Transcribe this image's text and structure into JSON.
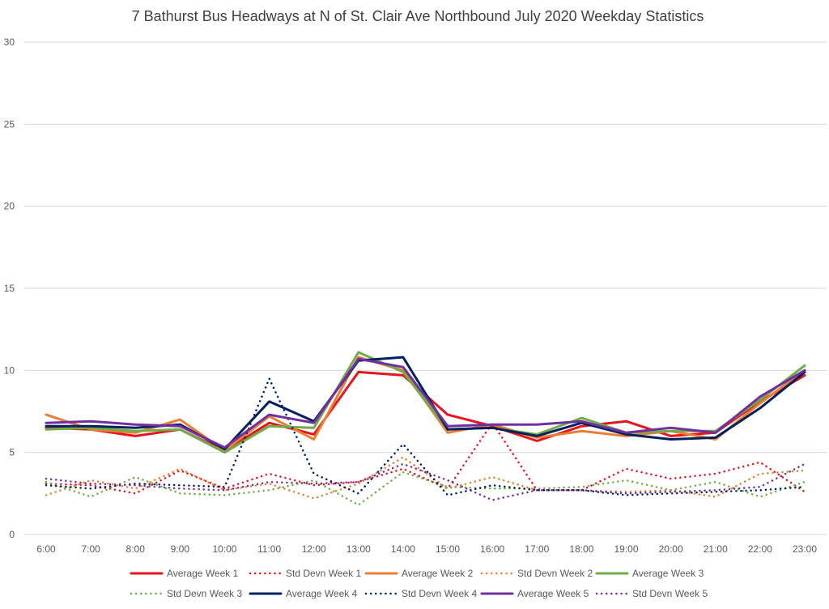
{
  "chart_data": {
    "type": "line",
    "title": "7 Bathurst Bus Headways at N of St. Clair Ave Northbound July 2020 Weekday Statistics",
    "xlabel": "",
    "ylabel": "",
    "categories": [
      "6:00",
      "7:00",
      "8:00",
      "9:00",
      "10:00",
      "11:00",
      "12:00",
      "13:00",
      "14:00",
      "15:00",
      "16:00",
      "17:00",
      "18:00",
      "19:00",
      "20:00",
      "21:00",
      "22:00",
      "23:00"
    ],
    "ylim": [
      0,
      30
    ],
    "yticks": [
      "0",
      "5",
      "10",
      "15",
      "20",
      "25",
      "30"
    ],
    "grid": true,
    "legend_position": "bottom",
    "series": [
      {
        "name": "Average Week 1",
        "color": "#e8141b",
        "style": "solid",
        "values": [
          6.5,
          6.4,
          6.0,
          6.4,
          5.1,
          6.8,
          6.1,
          9.9,
          9.7,
          7.3,
          6.6,
          5.7,
          6.6,
          6.9,
          6.0,
          6.2,
          8.1,
          9.7
        ]
      },
      {
        "name": "Std Devn Week 1",
        "color": "#e8141b",
        "style": "dotted",
        "values": [
          3.1,
          3.0,
          2.5,
          3.9,
          2.8,
          3.7,
          3.0,
          3.2,
          4.0,
          2.8,
          6.8,
          2.7,
          2.7,
          4.0,
          3.4,
          3.7,
          4.4,
          2.6
        ]
      },
      {
        "name": "Average Week 2",
        "color": "#ed7d31",
        "style": "solid",
        "values": [
          7.3,
          6.4,
          6.2,
          7.0,
          5.1,
          7.2,
          5.8,
          10.8,
          10.0,
          6.2,
          6.7,
          5.9,
          6.3,
          6.0,
          6.3,
          5.8,
          8.0,
          10.0
        ]
      },
      {
        "name": "Std Devn Week 2",
        "color": "#ed7d31",
        "style": "dotted",
        "values": [
          2.4,
          3.3,
          2.8,
          4.0,
          2.7,
          3.1,
          2.2,
          3.1,
          4.7,
          2.8,
          3.5,
          2.7,
          2.7,
          2.6,
          2.7,
          2.3,
          3.7,
          3.9
        ]
      },
      {
        "name": "Average Week 3",
        "color": "#70ad47",
        "style": "solid",
        "values": [
          6.4,
          6.5,
          6.3,
          6.4,
          5.0,
          6.6,
          6.5,
          11.1,
          9.9,
          6.4,
          6.5,
          6.1,
          7.1,
          6.2,
          6.3,
          6.3,
          8.2,
          10.3
        ]
      },
      {
        "name": "Std Devn Week 3",
        "color": "#70ad47",
        "style": "dotted",
        "values": [
          3.2,
          2.3,
          3.5,
          2.5,
          2.4,
          2.7,
          3.3,
          1.8,
          3.8,
          2.9,
          2.8,
          2.8,
          2.9,
          3.3,
          2.7,
          3.2,
          2.3,
          3.2
        ]
      },
      {
        "name": "Average Week 4",
        "color": "#002060",
        "style": "solid",
        "values": [
          6.6,
          6.6,
          6.5,
          6.7,
          5.2,
          8.1,
          6.9,
          10.6,
          10.8,
          6.4,
          6.5,
          6.0,
          6.8,
          6.1,
          5.8,
          5.9,
          7.7,
          9.9
        ]
      },
      {
        "name": "Std Devn Week 4",
        "color": "#002060",
        "style": "dotted",
        "values": [
          3.0,
          2.8,
          3.1,
          3.0,
          2.9,
          9.5,
          3.7,
          2.5,
          5.5,
          2.4,
          3.0,
          2.7,
          2.7,
          2.4,
          2.5,
          2.6,
          2.7,
          2.9
        ]
      },
      {
        "name": "Average Week 5",
        "color": "#7030a0",
        "style": "solid",
        "values": [
          6.8,
          6.9,
          6.7,
          6.6,
          5.3,
          7.3,
          6.8,
          10.7,
          10.2,
          6.6,
          6.7,
          6.7,
          6.9,
          6.2,
          6.5,
          6.2,
          8.4,
          10.0
        ]
      },
      {
        "name": "Std Devn Week 5",
        "color": "#7030a0",
        "style": "dotted",
        "values": [
          3.4,
          3.1,
          3.0,
          2.8,
          2.7,
          3.2,
          3.1,
          3.2,
          4.3,
          3.3,
          2.1,
          2.7,
          2.7,
          2.5,
          2.6,
          2.7,
          2.9,
          4.3
        ]
      }
    ]
  }
}
